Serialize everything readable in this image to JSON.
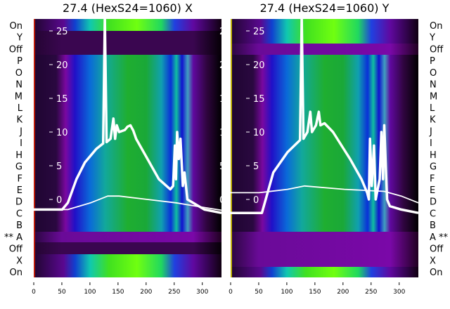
{
  "chart_data": [
    {
      "type": "heatmap",
      "title": "27.4 (HexS24=1060) X",
      "row_labels": [
        "On",
        "Y",
        "Off",
        "P",
        "O",
        "N",
        "M",
        "L",
        "K",
        "J",
        "I",
        "H",
        "G",
        "F",
        "E",
        "D",
        "C",
        "B",
        "** A",
        "Off",
        "X",
        "On"
      ],
      "label_side": "left",
      "xlim": [
        0,
        330
      ],
      "ylim": [
        -11.5,
        27
      ],
      "xticks": [
        0,
        50,
        100,
        150,
        200,
        250,
        300
      ],
      "yticks": [
        0,
        5,
        10,
        15,
        20,
        25
      ],
      "series": [
        {
          "name": "profile",
          "x": [
            0,
            50,
            60,
            75,
            90,
            110,
            122,
            125,
            128,
            135,
            140,
            143,
            146,
            150,
            160,
            165,
            170,
            175,
            180,
            200,
            220,
            240,
            245,
            248,
            250,
            252,
            255,
            258,
            262,
            265,
            270,
            280,
            300,
            330
          ],
          "y": [
            -1.5,
            -1.5,
            -0.5,
            3,
            5.5,
            7.5,
            8.3,
            27,
            8.5,
            9,
            12,
            9,
            11,
            10,
            10.3,
            10.8,
            11,
            10.2,
            9,
            6,
            3,
            1.5,
            2,
            8,
            3,
            10,
            6,
            9,
            2,
            4,
            0,
            -0.5,
            -1.5,
            -2
          ]
        },
        {
          "name": "reference",
          "x": [
            0,
            60,
            100,
            130,
            150,
            200,
            250,
            300,
            330
          ],
          "y": [
            -1.5,
            -1.5,
            -0.5,
            0.5,
            0.5,
            0,
            -0.5,
            -1.2,
            -1.6
          ]
        }
      ]
    },
    {
      "type": "heatmap",
      "title": "27.4 (HexS24=1060) Y",
      "row_labels": [
        "On",
        "Y",
        "Off",
        "P",
        "O",
        "N",
        "M",
        "L",
        "K",
        "J",
        "I",
        "H",
        "G",
        "F",
        "E",
        "D",
        "C",
        "B",
        "A **",
        "Off",
        "X",
        "On"
      ],
      "label_side": "right",
      "xlim": [
        0,
        330
      ],
      "ylim": [
        -11.5,
        27
      ],
      "xticks": [
        0,
        50,
        100,
        150,
        200,
        250,
        300
      ],
      "yticks": [
        0,
        5,
        10,
        15,
        20,
        25
      ],
      "series": [
        {
          "name": "profile",
          "x": [
            0,
            55,
            65,
            75,
            100,
            122,
            125,
            128,
            135,
            140,
            143,
            150,
            155,
            158,
            165,
            180,
            210,
            230,
            240,
            243,
            245,
            248,
            252,
            255,
            262,
            265,
            268,
            270,
            275,
            280,
            300,
            330
          ],
          "y": [
            -2,
            -2,
            1,
            4,
            7,
            8.8,
            27,
            9,
            10,
            13,
            10,
            11,
            13,
            11,
            11.3,
            10,
            6,
            3,
            1,
            0,
            9,
            2,
            8,
            0,
            3,
            10,
            3,
            11,
            0,
            -1,
            -1.5,
            -2
          ]
        },
        {
          "name": "reference",
          "x": [
            0,
            50,
            100,
            130,
            200,
            270,
            300,
            330
          ],
          "y": [
            1,
            1,
            1.5,
            2,
            1.5,
            1.2,
            0.5,
            -0.5
          ]
        }
      ]
    }
  ]
}
